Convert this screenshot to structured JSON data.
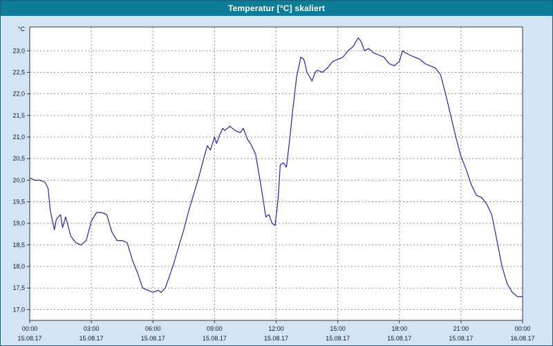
{
  "window": {
    "title": "Temperatur [°C] skaliert"
  },
  "chart_data": {
    "type": "line",
    "title": "Temperatur [°C] skaliert",
    "ylabel": "°C",
    "xlabel": "",
    "legend": "none",
    "grid": "dashed",
    "line_color": "#2323a8",
    "grid_color": "#8f8f8f",
    "axis_color": "#333344",
    "text_color": "#14143c",
    "plot_bg": "#ffffff",
    "outer_bg": "#d3e5f4",
    "titlebar_color": "#0e7e98",
    "xlim": [
      0,
      24
    ],
    "ylim": [
      16.75,
      23.55
    ],
    "y_ticks": [
      {
        "value": 17.0,
        "label": "17,0"
      },
      {
        "value": 17.5,
        "label": "17,5"
      },
      {
        "value": 18.0,
        "label": "18,0"
      },
      {
        "value": 18.5,
        "label": "18,5"
      },
      {
        "value": 19.0,
        "label": "19,0"
      },
      {
        "value": 19.5,
        "label": "19,5"
      },
      {
        "value": 20.0,
        "label": "20,0"
      },
      {
        "value": 20.5,
        "label": "20,5"
      },
      {
        "value": 21.0,
        "label": "21,0"
      },
      {
        "value": 21.5,
        "label": "21,5"
      },
      {
        "value": 22.0,
        "label": "22,0"
      },
      {
        "value": 22.5,
        "label": "22,5"
      },
      {
        "value": 23.0,
        "label": "23,0"
      }
    ],
    "x_ticks": [
      {
        "hour": 0,
        "time": "00:00",
        "date": "15.08.17"
      },
      {
        "hour": 3,
        "time": "03:00",
        "date": "15.08.17"
      },
      {
        "hour": 6,
        "time": "06:00",
        "date": "15.08.17"
      },
      {
        "hour": 9,
        "time": "09:00",
        "date": "15.08.17"
      },
      {
        "hour": 12,
        "time": "12:00",
        "date": "15.08.17"
      },
      {
        "hour": 15,
        "time": "15:00",
        "date": "15.08.17"
      },
      {
        "hour": 18,
        "time": "18:00",
        "date": "15.08.17"
      },
      {
        "hour": 21,
        "time": "21:00",
        "date": "15.08.17"
      },
      {
        "hour": 24,
        "time": "00:00",
        "date": "16.08.17"
      }
    ],
    "series": [
      {
        "name": "Temperatur",
        "x": [
          0,
          0.25,
          0.5,
          0.75,
          0.9,
          1,
          1.2,
          1.3,
          1.5,
          1.6,
          1.75,
          2,
          2.25,
          2.5,
          2.75,
          3,
          3.25,
          3.5,
          3.75,
          4,
          4.25,
          4.5,
          4.75,
          5,
          5.25,
          5.5,
          5.75,
          6,
          6.25,
          6.4,
          6.6,
          6.75,
          7,
          7.25,
          7.5,
          7.75,
          8,
          8.25,
          8.5,
          8.65,
          8.8,
          9,
          9.1,
          9.25,
          9.4,
          9.5,
          9.75,
          10,
          10.25,
          10.4,
          10.6,
          10.75,
          11,
          11.25,
          11.5,
          11.65,
          11.8,
          11.95,
          12.1,
          12.2,
          12.35,
          12.5,
          12.65,
          12.8,
          13,
          13.2,
          13.35,
          13.5,
          13.75,
          13.9,
          14,
          14.25,
          14.5,
          14.75,
          15,
          15.25,
          15.5,
          15.75,
          16,
          16.15,
          16.3,
          16.5,
          16.75,
          17,
          17.25,
          17.5,
          17.75,
          18,
          18.15,
          18.3,
          18.5,
          18.75,
          19,
          19.25,
          19.5,
          19.75,
          20,
          20.25,
          20.5,
          20.75,
          21,
          21.25,
          21.5,
          21.75,
          22,
          22.25,
          22.5,
          22.75,
          23,
          23.25,
          23.5,
          23.75,
          24
        ],
        "y": [
          20.05,
          20.0,
          20.0,
          19.95,
          19.8,
          19.3,
          18.85,
          19.1,
          19.2,
          18.9,
          19.15,
          18.7,
          18.55,
          18.5,
          18.6,
          19.05,
          19.25,
          19.25,
          19.2,
          18.8,
          18.6,
          18.6,
          18.55,
          18.15,
          17.85,
          17.5,
          17.45,
          17.4,
          17.45,
          17.4,
          17.5,
          17.7,
          18.05,
          18.45,
          18.85,
          19.3,
          19.7,
          20.1,
          20.55,
          20.8,
          20.7,
          21.0,
          20.85,
          21.05,
          21.2,
          21.15,
          21.25,
          21.15,
          21.1,
          21.2,
          20.95,
          20.85,
          20.6,
          19.9,
          19.15,
          19.2,
          19.0,
          18.95,
          19.6,
          20.35,
          20.4,
          20.3,
          20.9,
          21.6,
          22.4,
          22.85,
          22.8,
          22.5,
          22.3,
          22.5,
          22.55,
          22.5,
          22.6,
          22.75,
          22.8,
          22.85,
          23.0,
          23.1,
          23.3,
          23.2,
          23.0,
          23.05,
          22.95,
          22.9,
          22.85,
          22.7,
          22.65,
          22.75,
          23.0,
          22.95,
          22.9,
          22.85,
          22.8,
          22.7,
          22.65,
          22.6,
          22.45,
          22.0,
          21.5,
          21.0,
          20.55,
          20.25,
          19.9,
          19.65,
          19.6,
          19.45,
          19.2,
          18.6,
          18.0,
          17.6,
          17.4,
          17.3,
          17.3
        ]
      }
    ]
  }
}
